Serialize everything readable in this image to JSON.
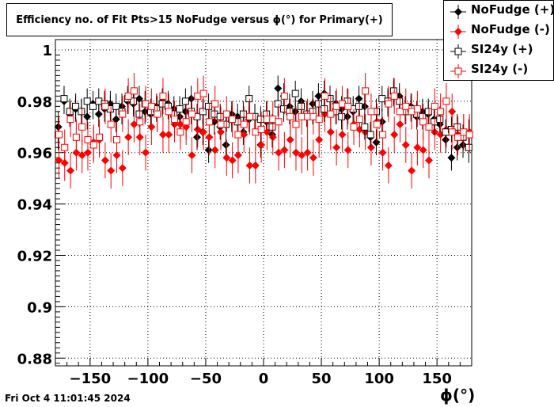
{
  "timestamp": "Fri Oct  4 11:01:45 2024",
  "chart_data": {
    "type": "scatter",
    "title": "Efficiency no. of Fit Pts>15 NoFudge versus ϕ(°) for Primary(+)",
    "xlabel": "ϕ(°)",
    "ylabel": "",
    "xlim": [
      -180,
      180
    ],
    "ylim": [
      0.877,
      1.004
    ],
    "xticks": [
      -150,
      -100,
      -50,
      0,
      50,
      100,
      150
    ],
    "xtick_labels": [
      "−150",
      "−100",
      "−50",
      "0",
      "50",
      "100",
      "150"
    ],
    "yticks": [
      0.88,
      0.9,
      0.92,
      0.94,
      0.96,
      0.98,
      1
    ],
    "ytick_labels": [
      "0.88",
      "0.9",
      "0.92",
      "0.94",
      "0.96",
      "0.98",
      "1"
    ],
    "grid": true,
    "legend_position": "top-right",
    "x": [
      -177.5,
      -172.5,
      -167.5,
      -162.5,
      -157.5,
      -152.5,
      -147.5,
      -142.5,
      -137.5,
      -132.5,
      -127.5,
      -122.5,
      -117.5,
      -112.5,
      -107.5,
      -102.5,
      -97.5,
      -92.5,
      -87.5,
      -82.5,
      -77.5,
      -72.5,
      -67.5,
      -62.5,
      -57.5,
      -52.5,
      -47.5,
      -42.5,
      -37.5,
      -32.5,
      -27.5,
      -22.5,
      -17.5,
      -12.5,
      -7.5,
      -2.5,
      2.5,
      7.5,
      12.5,
      17.5,
      22.5,
      27.5,
      32.5,
      37.5,
      42.5,
      47.5,
      52.5,
      57.5,
      62.5,
      67.5,
      72.5,
      77.5,
      82.5,
      87.5,
      92.5,
      97.5,
      102.5,
      107.5,
      112.5,
      117.5,
      122.5,
      127.5,
      132.5,
      137.5,
      142.5,
      147.5,
      152.5,
      157.5,
      162.5,
      167.5,
      172.5,
      177.5
    ],
    "series": [
      {
        "name": "NoFudge (+)",
        "marker": "filled-diamond",
        "color": "#000000",
        "values": [
          0.97,
          0.98,
          0.975,
          0.977,
          0.976,
          0.974,
          0.979,
          0.975,
          0.977,
          0.979,
          0.973,
          0.978,
          0.98,
          0.979,
          0.981,
          0.976,
          0.975,
          0.978,
          0.98,
          0.979,
          0.977,
          0.974,
          0.976,
          0.981,
          0.966,
          0.968,
          0.961,
          0.972,
          0.97,
          0.963,
          0.975,
          0.974,
          0.968,
          0.973,
          0.974,
          0.963,
          0.972,
          0.967,
          0.985,
          0.982,
          0.978,
          0.976,
          0.98,
          0.975,
          0.979,
          0.982,
          0.983,
          0.981,
          0.979,
          0.977,
          0.974,
          0.976,
          0.981,
          0.978,
          0.966,
          0.964,
          0.972,
          0.979,
          0.983,
          0.982,
          0.977,
          0.978,
          0.974,
          0.976,
          0.975,
          0.973,
          0.971,
          0.965,
          0.958,
          0.962,
          0.963,
          0.967
        ],
        "errors": [
          0.006,
          0.005,
          0.005,
          0.005,
          0.005,
          0.005,
          0.005,
          0.005,
          0.005,
          0.005,
          0.005,
          0.005,
          0.005,
          0.005,
          0.005,
          0.005,
          0.005,
          0.005,
          0.005,
          0.005,
          0.005,
          0.005,
          0.005,
          0.005,
          0.005,
          0.005,
          0.005,
          0.005,
          0.005,
          0.005,
          0.005,
          0.005,
          0.005,
          0.005,
          0.005,
          0.005,
          0.005,
          0.005,
          0.005,
          0.005,
          0.005,
          0.005,
          0.005,
          0.005,
          0.005,
          0.005,
          0.005,
          0.005,
          0.005,
          0.005,
          0.005,
          0.005,
          0.005,
          0.005,
          0.005,
          0.005,
          0.005,
          0.005,
          0.005,
          0.005,
          0.005,
          0.005,
          0.005,
          0.005,
          0.005,
          0.005,
          0.005,
          0.005,
          0.005,
          0.005,
          0.005,
          0.006
        ]
      },
      {
        "name": "NoFudge (-)",
        "marker": "filled-diamond",
        "color": "#ff0000",
        "values": [
          0.957,
          0.956,
          0.953,
          0.96,
          0.959,
          0.96,
          0.964,
          0.965,
          0.957,
          0.953,
          0.959,
          0.954,
          0.966,
          0.971,
          0.966,
          0.96,
          0.97,
          0.975,
          0.967,
          0.967,
          0.971,
          0.971,
          0.97,
          0.959,
          0.969,
          0.968,
          0.966,
          0.961,
          0.968,
          0.958,
          0.957,
          0.959,
          0.967,
          0.955,
          0.955,
          0.963,
          0.968,
          0.966,
          0.96,
          0.961,
          0.965,
          0.96,
          0.959,
          0.96,
          0.958,
          0.965,
          0.975,
          0.968,
          0.962,
          0.967,
          0.961,
          0.971,
          0.969,
          0.968,
          0.962,
          0.972,
          0.96,
          0.955,
          0.967,
          0.971,
          0.963,
          0.953,
          0.962,
          0.961,
          0.957,
          0.968,
          0.967,
          0.969,
          0.976,
          0.967,
          0.968,
          0.968
        ],
        "errors": [
          0.007,
          0.007,
          0.007,
          0.007,
          0.007,
          0.007,
          0.007,
          0.007,
          0.007,
          0.007,
          0.007,
          0.007,
          0.007,
          0.007,
          0.007,
          0.007,
          0.007,
          0.007,
          0.007,
          0.007,
          0.007,
          0.007,
          0.007,
          0.007,
          0.007,
          0.007,
          0.007,
          0.007,
          0.007,
          0.007,
          0.007,
          0.007,
          0.007,
          0.007,
          0.007,
          0.007,
          0.007,
          0.007,
          0.007,
          0.007,
          0.007,
          0.007,
          0.007,
          0.007,
          0.007,
          0.007,
          0.007,
          0.007,
          0.007,
          0.007,
          0.007,
          0.007,
          0.007,
          0.007,
          0.007,
          0.007,
          0.007,
          0.007,
          0.007,
          0.007,
          0.007,
          0.007,
          0.007,
          0.007,
          0.007,
          0.007,
          0.007,
          0.007,
          0.007,
          0.007,
          0.007,
          0.007
        ]
      },
      {
        "name": "SI24y (+)",
        "marker": "open-square",
        "color": "#000000",
        "values": [
          0.967,
          0.981,
          0.976,
          0.978,
          0.976,
          0.98,
          0.978,
          0.98,
          0.979,
          0.977,
          0.978,
          0.976,
          0.981,
          0.98,
          0.975,
          0.979,
          0.976,
          0.977,
          0.979,
          0.978,
          0.975,
          0.977,
          0.98,
          0.976,
          0.974,
          0.976,
          0.978,
          0.975,
          0.974,
          0.971,
          0.973,
          0.972,
          0.975,
          0.981,
          0.974,
          0.973,
          0.975,
          0.97,
          0.979,
          0.977,
          0.976,
          0.983,
          0.978,
          0.975,
          0.976,
          0.979,
          0.977,
          0.981,
          0.976,
          0.974,
          0.98,
          0.977,
          0.978,
          0.97,
          0.967,
          0.976,
          0.981,
          0.98,
          0.984,
          0.98,
          0.976,
          0.977,
          0.975,
          0.974,
          0.976,
          0.972,
          0.973,
          0.968,
          0.969,
          0.97,
          0.966,
          0.962
        ],
        "errors": [
          0.006,
          0.005,
          0.005,
          0.005,
          0.005,
          0.005,
          0.005,
          0.005,
          0.005,
          0.005,
          0.005,
          0.005,
          0.005,
          0.005,
          0.005,
          0.005,
          0.005,
          0.005,
          0.005,
          0.005,
          0.005,
          0.005,
          0.005,
          0.005,
          0.005,
          0.005,
          0.005,
          0.005,
          0.005,
          0.005,
          0.005,
          0.005,
          0.005,
          0.005,
          0.005,
          0.005,
          0.005,
          0.005,
          0.005,
          0.005,
          0.005,
          0.005,
          0.005,
          0.005,
          0.005,
          0.005,
          0.005,
          0.005,
          0.005,
          0.005,
          0.005,
          0.005,
          0.005,
          0.005,
          0.005,
          0.005,
          0.005,
          0.005,
          0.005,
          0.005,
          0.005,
          0.005,
          0.005,
          0.005,
          0.005,
          0.005,
          0.005,
          0.005,
          0.005,
          0.005,
          0.005,
          0.006
        ]
      },
      {
        "name": "SI24y (-)",
        "marker": "open-square",
        "color": "#ff0000",
        "values": [
          0.967,
          0.962,
          0.973,
          0.966,
          0.97,
          0.965,
          0.963,
          0.966,
          0.978,
          0.971,
          0.965,
          0.975,
          0.982,
          0.984,
          0.972,
          0.979,
          0.978,
          0.975,
          0.982,
          0.976,
          0.973,
          0.968,
          0.972,
          0.975,
          0.982,
          0.983,
          0.972,
          0.979,
          0.971,
          0.975,
          0.973,
          0.967,
          0.971,
          0.974,
          0.968,
          0.969,
          0.973,
          0.973,
          0.972,
          0.982,
          0.974,
          0.971,
          0.974,
          0.974,
          0.974,
          0.973,
          0.982,
          0.975,
          0.978,
          0.979,
          0.978,
          0.97,
          0.973,
          0.984,
          0.976,
          0.971,
          0.967,
          0.979,
          0.982,
          0.976,
          0.978,
          0.976,
          0.977,
          0.972,
          0.97,
          0.978,
          0.976,
          0.98,
          0.968,
          0.966,
          0.968,
          0.967
        ],
        "errors": [
          0.007,
          0.007,
          0.007,
          0.007,
          0.007,
          0.007,
          0.007,
          0.007,
          0.007,
          0.007,
          0.007,
          0.007,
          0.007,
          0.007,
          0.007,
          0.007,
          0.007,
          0.007,
          0.007,
          0.007,
          0.007,
          0.007,
          0.007,
          0.007,
          0.007,
          0.007,
          0.007,
          0.007,
          0.007,
          0.007,
          0.007,
          0.007,
          0.007,
          0.007,
          0.007,
          0.007,
          0.007,
          0.007,
          0.007,
          0.007,
          0.007,
          0.007,
          0.007,
          0.007,
          0.007,
          0.007,
          0.007,
          0.007,
          0.007,
          0.007,
          0.007,
          0.007,
          0.007,
          0.007,
          0.007,
          0.007,
          0.007,
          0.007,
          0.007,
          0.007,
          0.007,
          0.007,
          0.007,
          0.007,
          0.007,
          0.007,
          0.007,
          0.007,
          0.007,
          0.007,
          0.007,
          0.007
        ]
      }
    ]
  }
}
